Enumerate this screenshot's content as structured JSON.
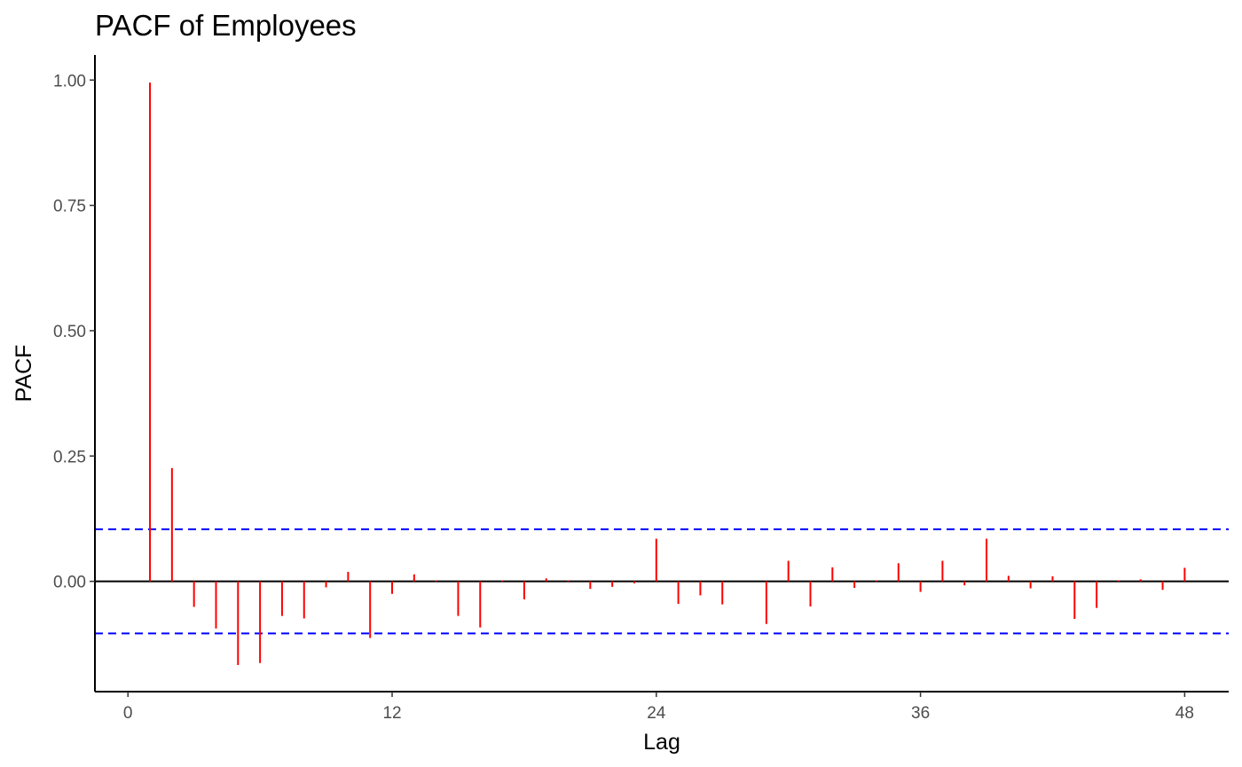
{
  "chart_data": {
    "type": "bar",
    "title": "PACF of Employees",
    "xlabel": "Lag",
    "ylabel": "PACF",
    "xlim": [
      -1.5,
      50
    ],
    "ylim": [
      -0.22,
      1.05
    ],
    "xticks": [
      0,
      12,
      24,
      36,
      48
    ],
    "xtick_labels": [
      "0",
      "12",
      "24",
      "36",
      "48"
    ],
    "yticks": [
      0,
      0.25,
      0.5,
      0.75,
      1.0
    ],
    "ytick_labels": [
      "0.00",
      "0.25",
      "0.50",
      "0.75",
      "1.00"
    ],
    "confidence_bound": 0.104,
    "lags": [
      1,
      2,
      3,
      4,
      5,
      6,
      7,
      8,
      9,
      10,
      11,
      12,
      13,
      14,
      15,
      16,
      17,
      18,
      19,
      20,
      21,
      22,
      23,
      24,
      25,
      26,
      27,
      28,
      29,
      30,
      31,
      32,
      33,
      34,
      35,
      36,
      37,
      38,
      39,
      40,
      41,
      42,
      43,
      44,
      45,
      46,
      47,
      48
    ],
    "values": [
      0.995,
      0.226,
      -0.051,
      -0.094,
      -0.167,
      -0.163,
      -0.069,
      -0.074,
      -0.012,
      0.019,
      -0.113,
      -0.025,
      0.014,
      0.002,
      -0.069,
      -0.092,
      0.002,
      -0.036,
      0.006,
      0.002,
      -0.015,
      -0.011,
      -0.004,
      0.085,
      -0.045,
      -0.028,
      -0.046,
      0.0,
      -0.085,
      0.041,
      -0.05,
      0.028,
      -0.013,
      0.002,
      0.036,
      -0.021,
      0.041,
      -0.008,
      0.085,
      0.011,
      -0.014,
      0.01,
      -0.075,
      -0.053,
      0.002,
      0.004,
      -0.017,
      0.027
    ],
    "colors": {
      "bars": "#ff0000",
      "bounds": "#0000ff",
      "axis": "#000000",
      "zero_line": "#000000"
    },
    "grid": false,
    "legend": "none"
  }
}
